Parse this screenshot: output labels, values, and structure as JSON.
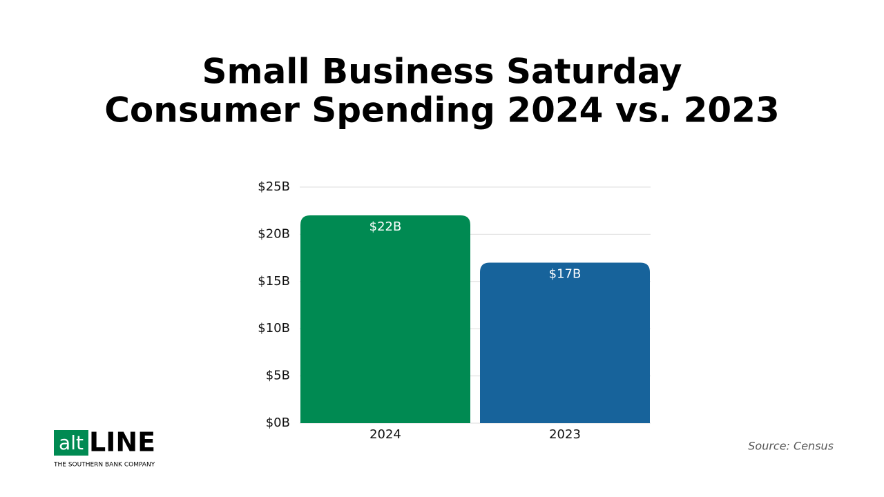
{
  "chart_data": {
    "type": "bar",
    "title": [
      "Small Business Saturday",
      "Consumer Spending 2024 vs. 2023"
    ],
    "categories": [
      "2024",
      "2023"
    ],
    "values": [
      22,
      17
    ],
    "value_labels": [
      "$22B",
      "$17B"
    ],
    "colors": [
      "#008a52",
      "#17639b"
    ],
    "ylim": [
      0,
      25
    ],
    "yticks": [
      {
        "value": 0,
        "label": "$0B"
      },
      {
        "value": 5,
        "label": "$5B"
      },
      {
        "value": 10,
        "label": "$10B"
      },
      {
        "value": 15,
        "label": "$15B"
      },
      {
        "value": 20,
        "label": "$20B"
      },
      {
        "value": 25,
        "label": "$25B"
      }
    ],
    "grid": true
  },
  "source": "Source: Census",
  "logo": {
    "mark": "alt",
    "name": "LINE",
    "tagline": "THE SOUTHERN BANK COMPANY"
  }
}
